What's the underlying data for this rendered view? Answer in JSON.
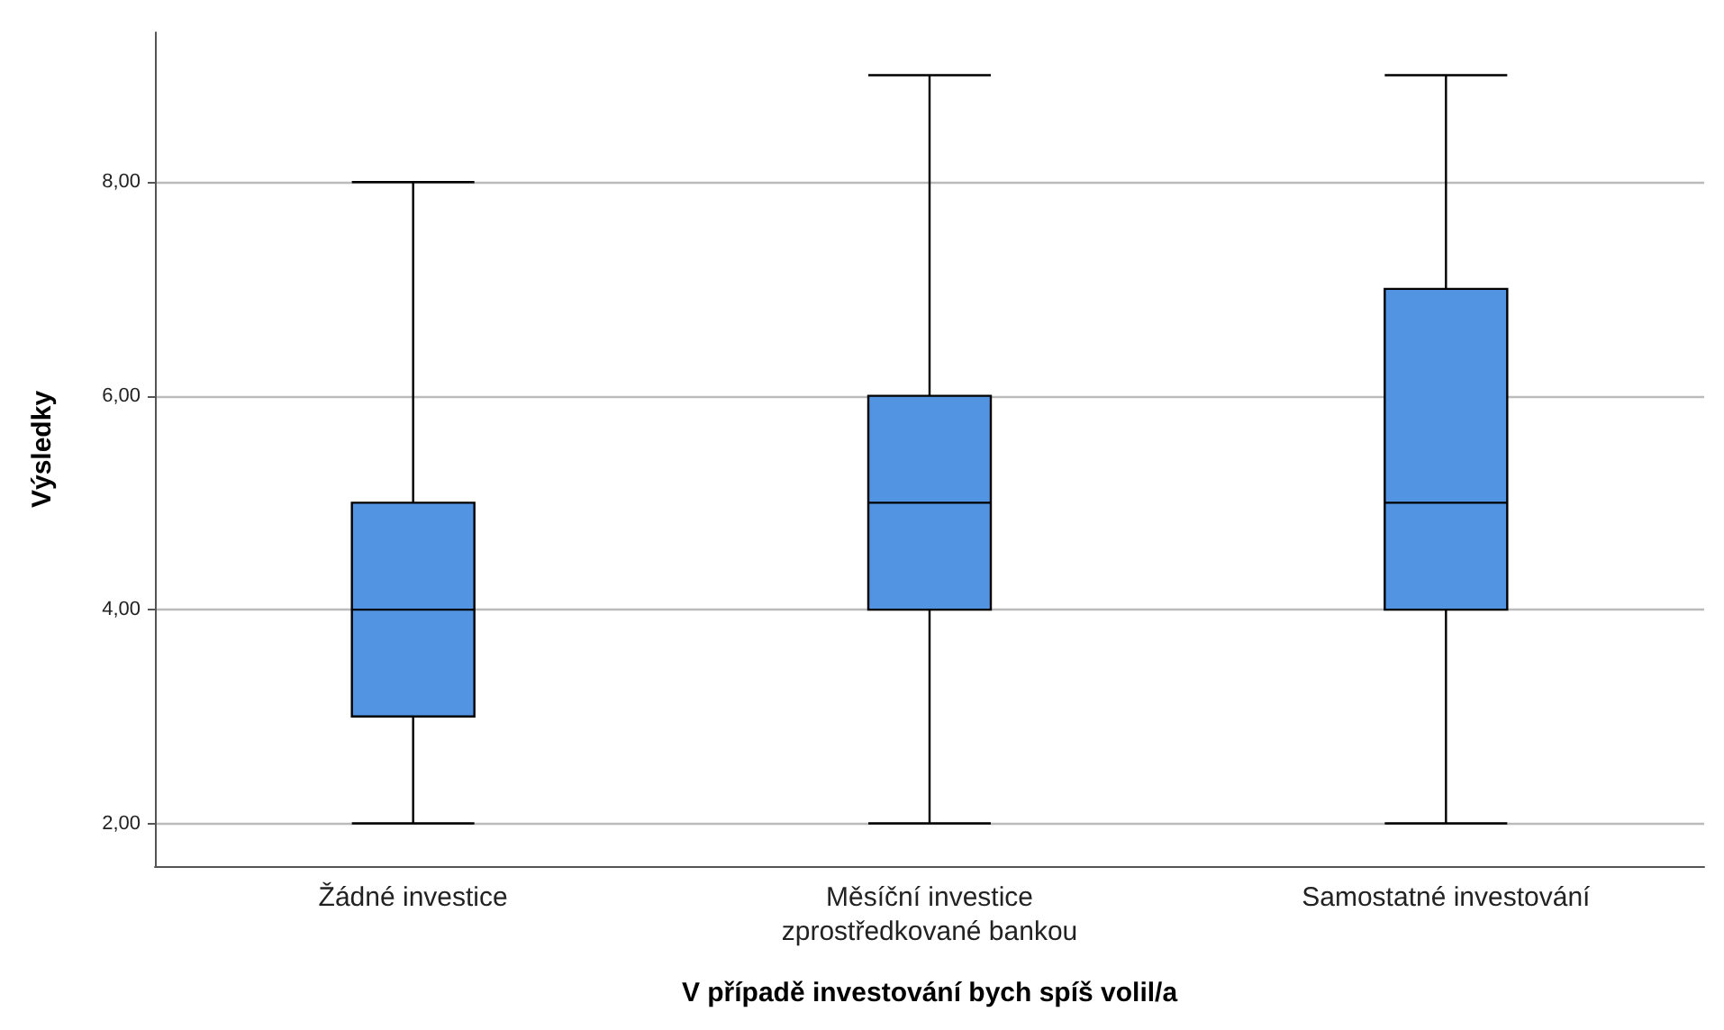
{
  "chart_data": {
    "type": "box",
    "xlabel": "V případě investování bych spíš volil/a",
    "ylabel": "Výsledky",
    "categories": [
      "Žádné investice",
      "Měsíční investice\nzprostředkované bankou",
      "Samostatné investování"
    ],
    "series": [
      {
        "color": "#5294e2",
        "boxes": [
          {
            "low": 2,
            "q1": 3,
            "median": 4,
            "q3": 5,
            "high": 8
          },
          {
            "low": 2,
            "q1": 4,
            "median": 5,
            "q3": 6,
            "high": 9
          },
          {
            "low": 2,
            "q1": 4,
            "median": 5,
            "q3": 7,
            "high": 9
          }
        ]
      }
    ],
    "ylim": [
      1.6,
      9.4
    ],
    "yticks": [
      {
        "value": 2,
        "label": "2,00"
      },
      {
        "value": 4,
        "label": "4,00"
      },
      {
        "value": 6,
        "label": "6,00"
      },
      {
        "value": 8,
        "label": "8,00"
      }
    ],
    "grid": "y"
  }
}
